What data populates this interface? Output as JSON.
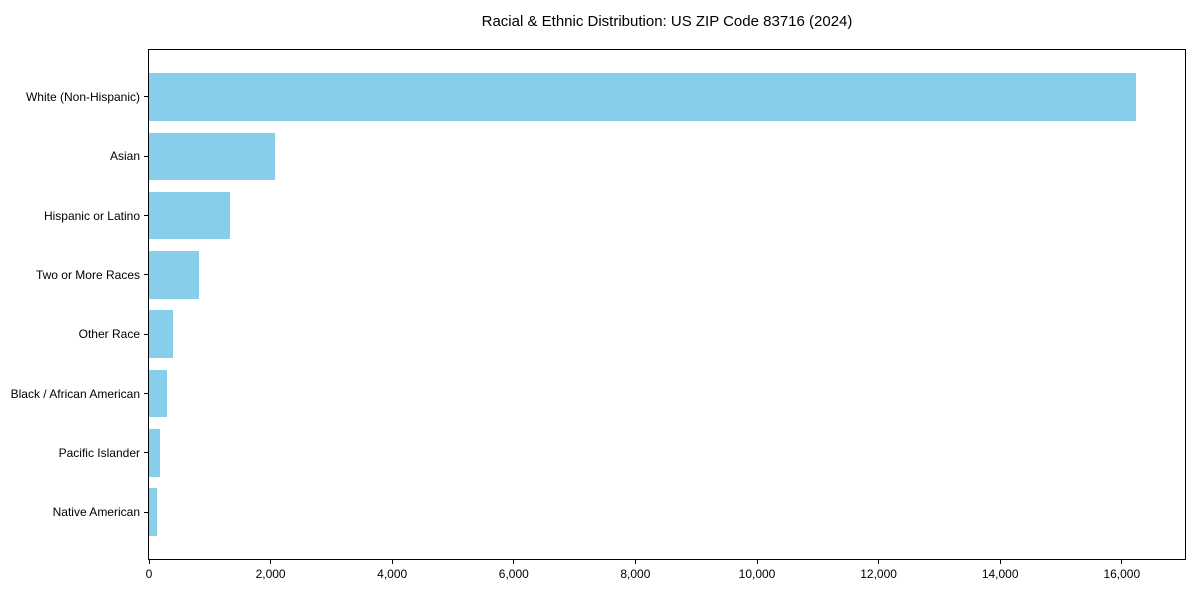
{
  "chart_data": {
    "type": "bar",
    "orientation": "horizontal",
    "title": "Racial & Ethnic Distribution: US ZIP Code 83716 (2024)",
    "categories": [
      "White (Non-Hispanic)",
      "Asian",
      "Hispanic or Latino",
      "Two or More Races",
      "Other Race",
      "Black / African American",
      "Pacific Islander",
      "Native American"
    ],
    "values": [
      16230,
      2070,
      1330,
      820,
      390,
      290,
      180,
      130
    ],
    "xlabel": "",
    "ylabel": "",
    "xlim": [
      0,
      17040
    ],
    "xticks": [
      0,
      2000,
      4000,
      6000,
      8000,
      10000,
      12000,
      14000,
      16000
    ],
    "xtick_labels": [
      "0",
      "2,000",
      "4,000",
      "6,000",
      "8,000",
      "10,000",
      "12,000",
      "14,000",
      "16,000"
    ],
    "bar_color": "#87CEEB",
    "axis_color": "#000000",
    "text_color": "#000000",
    "background_color": "#ffffff",
    "grid": false,
    "legend": null
  }
}
